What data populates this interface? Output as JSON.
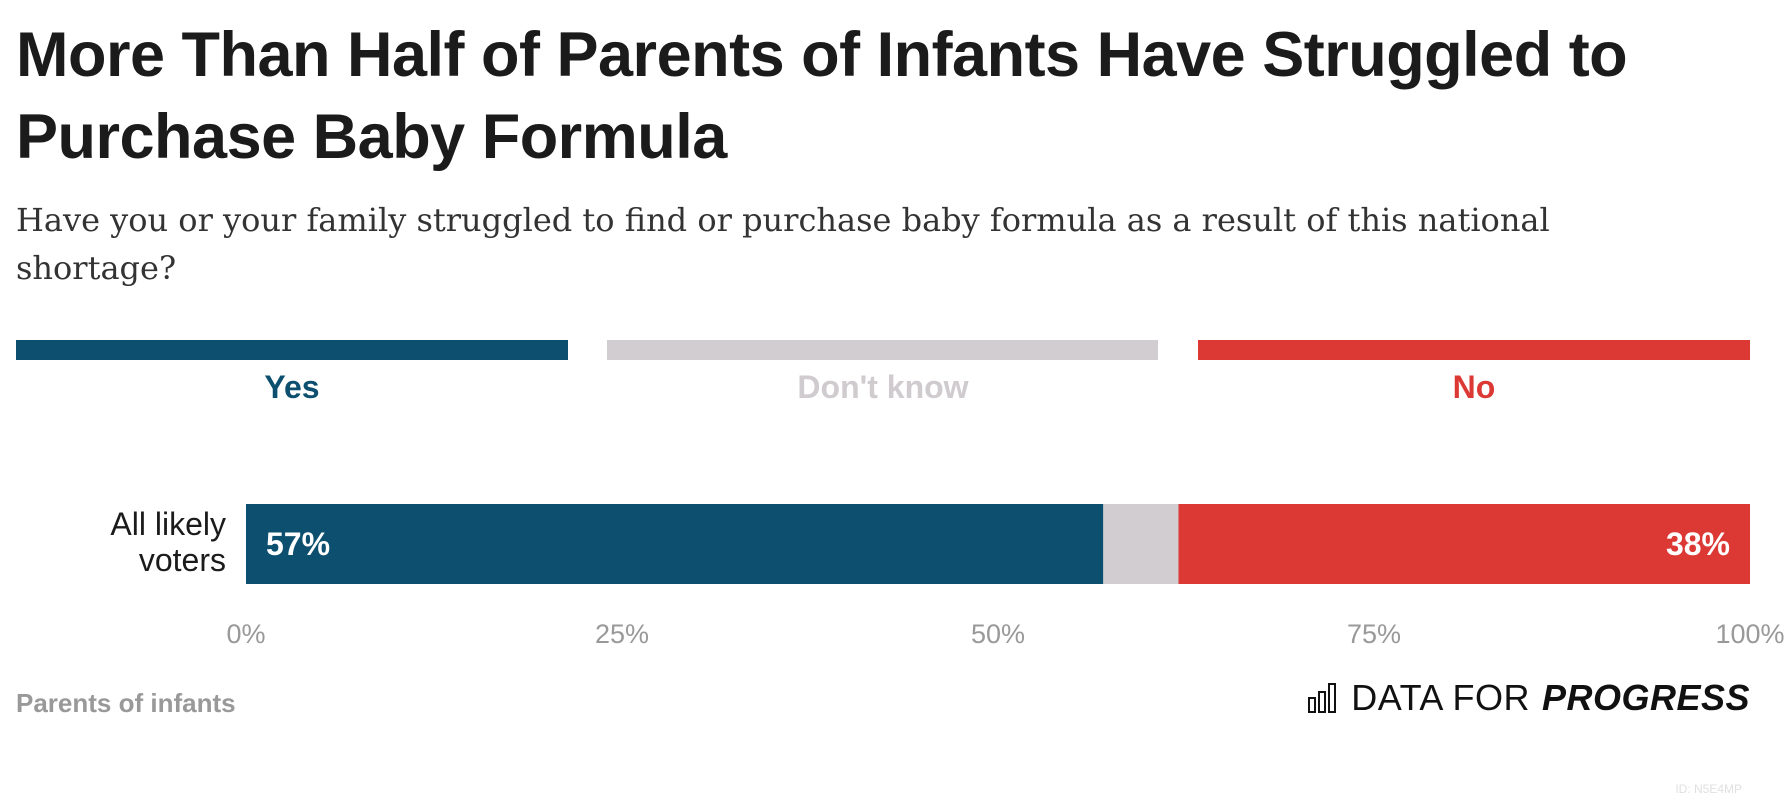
{
  "title": "More Than Half of Parents of Infants Have Struggled to Purchase Baby Formula",
  "subtitle": "Have you or your family struggled to find or purchase baby formula as a result of this national shortage?",
  "legend": [
    {
      "label": "Yes",
      "color": "#0d4f6e",
      "text_color": "#0d4f6e"
    },
    {
      "label": "Don't know",
      "color": "#d1cdd0",
      "text_color": "#cfcbce"
    },
    {
      "label": "No",
      "color": "#dc3934",
      "text_color": "#dc3934"
    }
  ],
  "chart_data": {
    "type": "bar",
    "orientation": "horizontal-stacked",
    "categories": [
      "All likely voters"
    ],
    "series": [
      {
        "name": "Yes",
        "values": [
          57
        ],
        "color": "#0d4f6e",
        "label": "57%"
      },
      {
        "name": "Don't know",
        "values": [
          5
        ],
        "color": "#d1cdd0",
        "label": ""
      },
      {
        "name": "No",
        "values": [
          38
        ],
        "color": "#dc3934",
        "label": "38%"
      }
    ],
    "xlim": [
      0,
      100
    ],
    "xticks": [
      "0%",
      "25%",
      "50%",
      "75%",
      "100%"
    ],
    "xlabel": "",
    "ylabel": "",
    "grid": false,
    "legend_position": "top"
  },
  "footnote": "Parents of infants",
  "brand": {
    "regular": "DATA FOR",
    "bold": "PROGRESS"
  },
  "id_tag": "ID: N5E4MP"
}
